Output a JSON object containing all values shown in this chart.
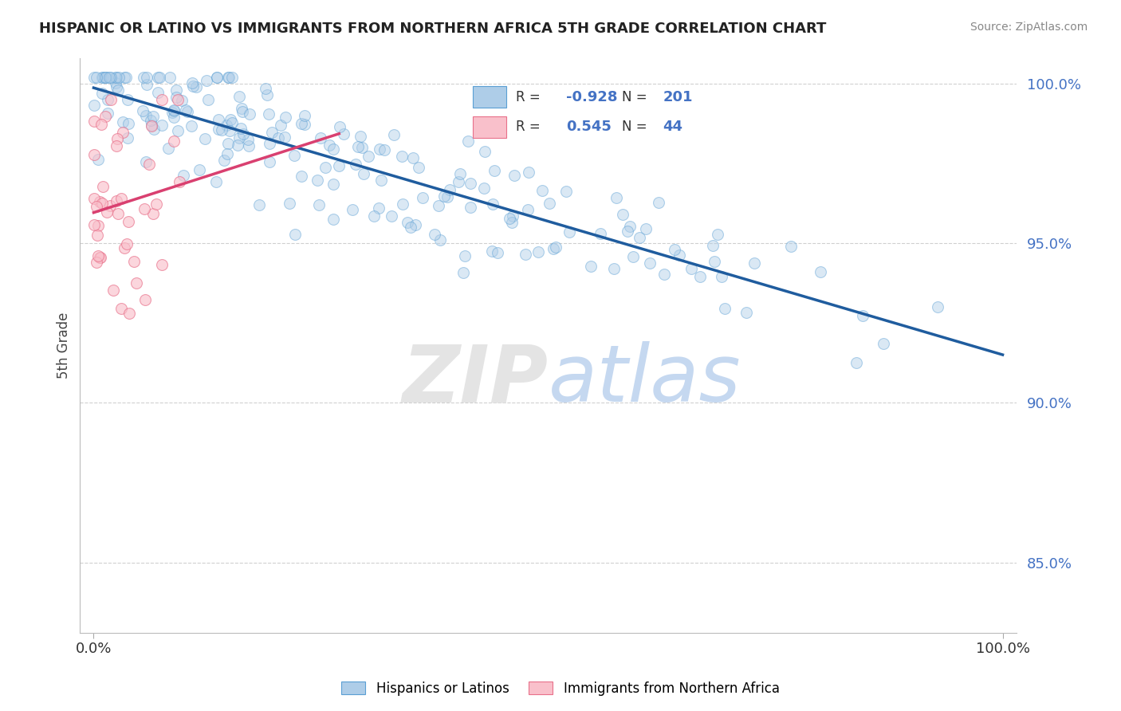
{
  "title": "HISPANIC OR LATINO VS IMMIGRANTS FROM NORTHERN AFRICA 5TH GRADE CORRELATION CHART",
  "source_text": "Source: ZipAtlas.com",
  "ylabel": "5th Grade",
  "legend_R1": "-0.928",
  "legend_N1": "201",
  "legend_R2": "0.545",
  "legend_N2": "44",
  "blue_fill_color": "#aecde8",
  "blue_edge_color": "#5a9fd4",
  "pink_fill_color": "#f9c0cb",
  "pink_edge_color": "#e8708a",
  "blue_line_color": "#1f5c9e",
  "pink_line_color": "#d94070",
  "tick_color": "#4472c4",
  "grid_color": "#d0d0d0",
  "background_color": "#ffffff",
  "ylim_low": 0.828,
  "ylim_high": 1.008,
  "xlim_low": -0.015,
  "xlim_high": 1.015,
  "yticks": [
    0.85,
    0.9,
    0.95,
    1.0
  ],
  "xticks": [
    0.0,
    1.0
  ],
  "marker_size": 100,
  "marker_alpha": 0.45,
  "watermark_zip": "ZIP",
  "watermark_atlas": "atlas"
}
